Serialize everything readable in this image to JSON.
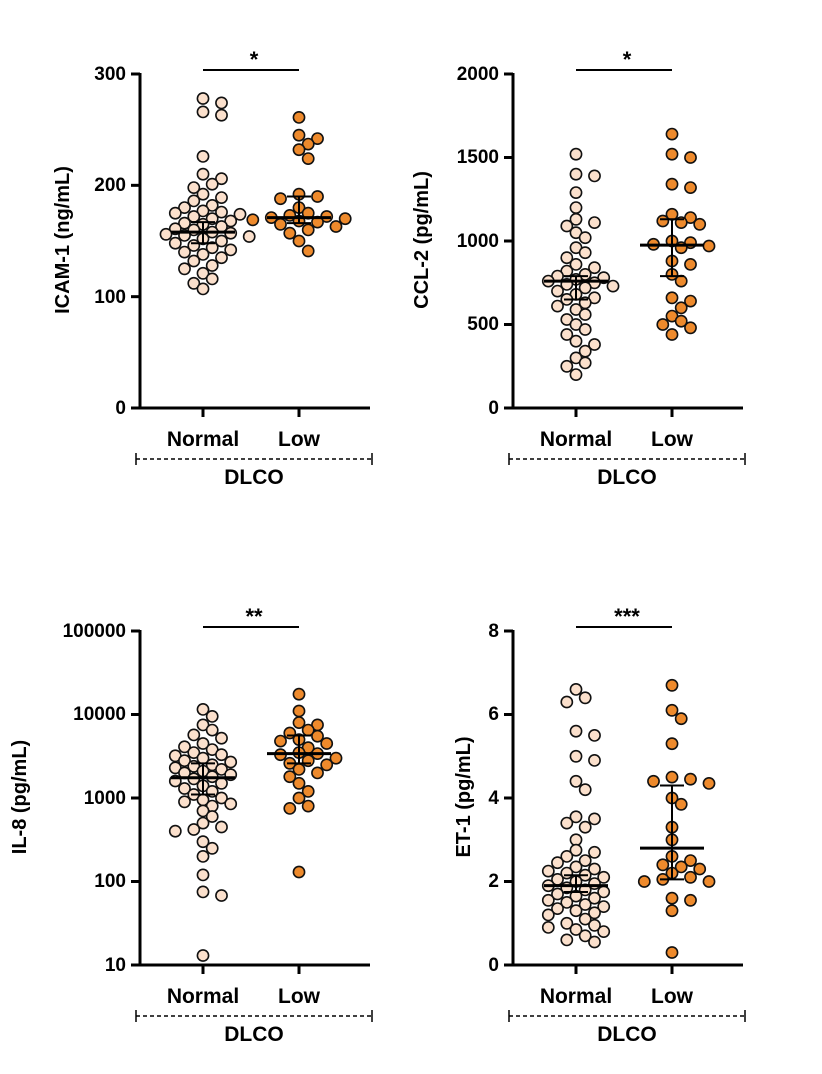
{
  "colors": {
    "normal_fill": "#fbe0cc",
    "low_fill": "#ee8a2c",
    "outline": "#111111"
  },
  "chart_data": [
    {
      "type": "scatter",
      "title": "",
      "ylabel": "ICAM-1 (ng/mL)",
      "xlabel": "DLCO",
      "yscale": "linear",
      "ylim": [
        0,
        300
      ],
      "ticks": [
        0,
        100,
        200,
        300
      ],
      "tick_labels": [
        "0",
        "100",
        "200",
        "300"
      ],
      "categories": [
        "Normal",
        "Low"
      ],
      "significance": "*",
      "summary": {
        "Normal": {
          "center": 158,
          "low": 148,
          "high": 167
        },
        "Low": {
          "center": 171,
          "low": 166,
          "high": 190
        }
      },
      "series": [
        {
          "name": "Normal",
          "values": [
            278,
            274,
            266,
            263,
            226,
            210,
            206,
            201,
            198,
            192,
            189,
            186,
            182,
            180,
            177,
            176,
            175,
            174,
            172,
            170,
            168,
            166,
            165,
            163,
            161,
            160,
            158,
            157,
            156,
            155,
            154,
            152,
            150,
            148,
            146,
            144,
            142,
            140,
            138,
            135,
            132,
            128,
            125,
            121,
            116,
            112,
            107
          ]
        },
        {
          "name": "Low",
          "values": [
            261,
            245,
            242,
            237,
            232,
            224,
            192,
            190,
            188,
            180,
            175,
            173,
            172,
            171,
            170,
            169,
            168,
            167,
            165,
            163,
            160,
            157,
            150,
            141
          ]
        }
      ]
    },
    {
      "type": "scatter",
      "title": "",
      "ylabel": "CCL-2 (pg/mL)",
      "xlabel": "DLCO",
      "yscale": "linear",
      "ylim": [
        0,
        2000
      ],
      "ticks": [
        0,
        500,
        1000,
        1500,
        2000
      ],
      "tick_labels": [
        "0",
        "500",
        "1000",
        "1500",
        "2000"
      ],
      "categories": [
        "Normal",
        "Low"
      ],
      "significance": "*",
      "summary": {
        "Normal": {
          "center": 760,
          "low": 650,
          "high": 790
        },
        "Low": {
          "center": 975,
          "low": 790,
          "high": 1130
        }
      },
      "series": [
        {
          "name": "Normal",
          "values": [
            1520,
            1400,
            1390,
            1290,
            1200,
            1130,
            1110,
            1090,
            1050,
            1020,
            960,
            930,
            900,
            860,
            840,
            820,
            800,
            790,
            780,
            770,
            760,
            750,
            740,
            730,
            720,
            700,
            680,
            660,
            650,
            630,
            610,
            590,
            560,
            530,
            500,
            470,
            440,
            400,
            380,
            340,
            300,
            270,
            250,
            200
          ]
        },
        {
          "name": "Low",
          "values": [
            1640,
            1520,
            1500,
            1340,
            1320,
            1160,
            1140,
            1120,
            1110,
            1100,
            1000,
            990,
            980,
            970,
            960,
            880,
            860,
            800,
            760,
            660,
            640,
            600,
            550,
            520,
            500,
            480,
            440
          ]
        }
      ]
    },
    {
      "type": "scatter",
      "title": "",
      "ylabel": "IL-8 (pg/mL)",
      "xlabel": "DLCO",
      "yscale": "log",
      "ylim": [
        10,
        100000
      ],
      "ticks": [
        10,
        100,
        1000,
        10000,
        100000
      ],
      "tick_labels": [
        "10",
        "100",
        "1000",
        "10000",
        "100000"
      ],
      "categories": [
        "Normal",
        "Low"
      ],
      "significance": "**",
      "summary": {
        "Normal": {
          "center": 1750,
          "low": 1100,
          "high": 2600
        },
        "Low": {
          "center": 3400,
          "low": 2600,
          "high": 5600
        }
      },
      "series": [
        {
          "name": "Normal",
          "values": [
            11500,
            9500,
            7500,
            6500,
            5700,
            5200,
            4500,
            4100,
            3800,
            3500,
            3300,
            3200,
            3000,
            2800,
            2700,
            2500,
            2400,
            2300,
            2200,
            2100,
            2000,
            1900,
            1800,
            1700,
            1600,
            1500,
            1400,
            1300,
            1200,
            1100,
            1000,
            950,
            900,
            850,
            800,
            700,
            600,
            500,
            450,
            420,
            400,
            300,
            250,
            200,
            120,
            75,
            68,
            13
          ]
        },
        {
          "name": "Low",
          "values": [
            17500,
            11000,
            8000,
            7500,
            6500,
            6000,
            5500,
            5000,
            4800,
            4500,
            4000,
            3500,
            3400,
            3300,
            3000,
            2800,
            2600,
            2500,
            2200,
            2000,
            1800,
            1500,
            1200,
            1000,
            800,
            750,
            130
          ]
        }
      ]
    },
    {
      "type": "scatter",
      "title": "",
      "ylabel": "ET-1 (pg/mL)",
      "xlabel": "DLCO",
      "yscale": "linear",
      "ylim": [
        0,
        8
      ],
      "ticks": [
        0,
        2,
        4,
        6,
        8
      ],
      "tick_labels": [
        "0",
        "2",
        "4",
        "6",
        "8"
      ],
      "categories": [
        "Normal",
        "Low"
      ],
      "significance": "***",
      "summary": {
        "Normal": {
          "center": 1.9,
          "low": 1.75,
          "high": 2.15
        },
        "Low": {
          "center": 2.8,
          "low": 2.05,
          "high": 4.3
        }
      },
      "series": [
        {
          "name": "Normal",
          "values": [
            6.6,
            6.4,
            6.3,
            5.6,
            5.5,
            5.0,
            4.9,
            4.4,
            4.2,
            3.55,
            3.5,
            3.4,
            3.3,
            3.0,
            2.75,
            2.7,
            2.6,
            2.5,
            2.45,
            2.35,
            2.3,
            2.25,
            2.2,
            2.15,
            2.1,
            2.05,
            2.0,
            1.95,
            1.9,
            1.85,
            1.8,
            1.75,
            1.7,
            1.65,
            1.6,
            1.55,
            1.5,
            1.45,
            1.4,
            1.35,
            1.3,
            1.25,
            1.2,
            1.1,
            1.0,
            0.95,
            0.9,
            0.85,
            0.8,
            0.7,
            0.6,
            0.55
          ]
        },
        {
          "name": "Low",
          "values": [
            6.7,
            6.1,
            5.9,
            5.3,
            4.5,
            4.45,
            4.4,
            4.35,
            4.0,
            3.85,
            3.3,
            3.0,
            2.6,
            2.5,
            2.4,
            2.35,
            2.3,
            2.2,
            2.1,
            2.05,
            2.0,
            2.0,
            1.6,
            1.55,
            1.3,
            0.3
          ]
        }
      ]
    }
  ]
}
